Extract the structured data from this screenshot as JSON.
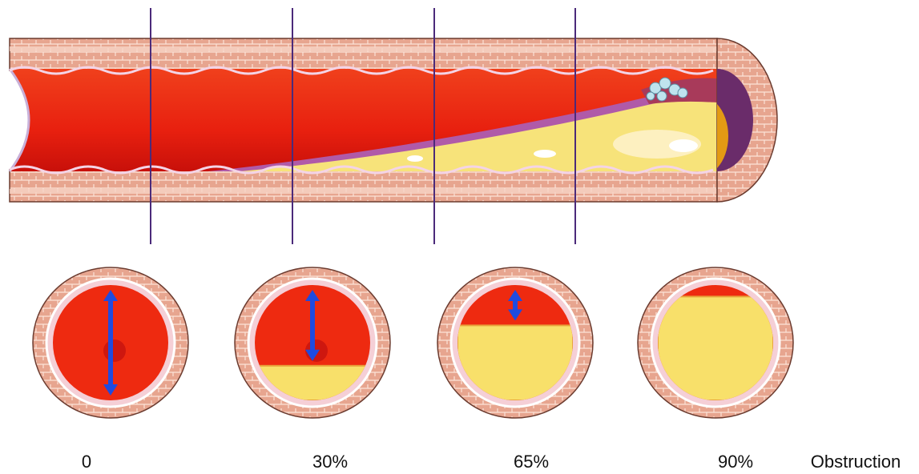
{
  "stages": [
    {
      "value": 0,
      "label": "0"
    },
    {
      "value": 30,
      "label": "30%"
    },
    {
      "value": 65,
      "label": "65%"
    },
    {
      "value": 90,
      "label": "90%"
    }
  ],
  "axis_label": "Obstruction"
}
